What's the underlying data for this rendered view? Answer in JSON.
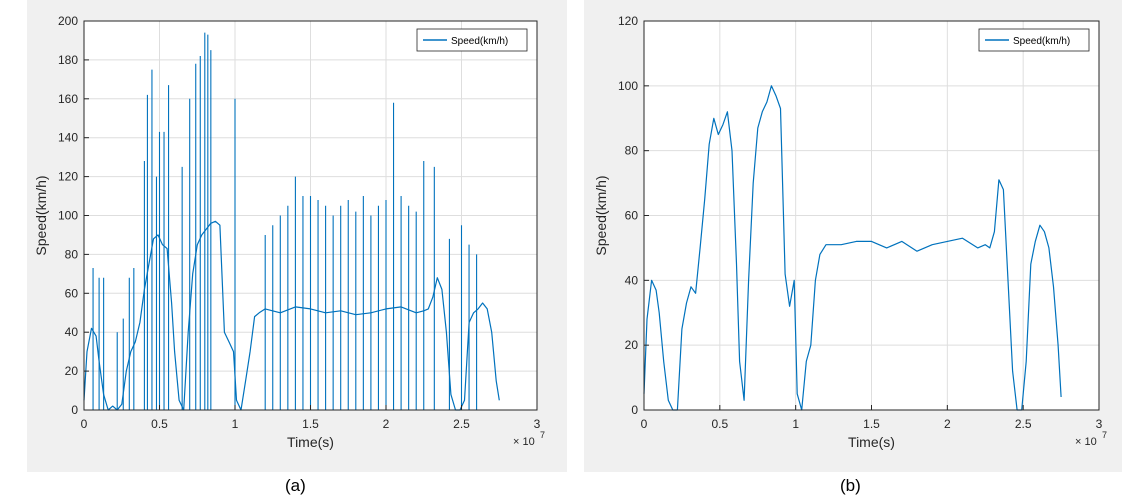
{
  "chart_data": [
    {
      "type": "line",
      "caption": "(a)",
      "xlabel": "Time(s)",
      "ylabel": "Speed(km/h)",
      "x_multiplier": "× 10",
      "x_multiplier_exp": "7",
      "xlim": [
        0,
        3
      ],
      "ylim": [
        0,
        200
      ],
      "xticks": [
        0,
        0.5,
        1,
        1.5,
        2,
        2.5,
        3
      ],
      "xtick_labels": [
        "0",
        "0.5",
        "1",
        "1.5",
        "2",
        "2.5",
        "3"
      ],
      "yticks": [
        0,
        20,
        40,
        60,
        80,
        100,
        120,
        140,
        160,
        180,
        200
      ],
      "grid": true,
      "legend_position": "top-right",
      "color": "#0072bd",
      "series": [
        {
          "name": "Speed(km/h)",
          "x": [
            0,
            0.02,
            0.05,
            0.08,
            0.1,
            0.13,
            0.16,
            0.19,
            0.22,
            0.25,
            0.28,
            0.31,
            0.34,
            0.37,
            0.4,
            0.43,
            0.46,
            0.49,
            0.52,
            0.55,
            0.58,
            0.6,
            0.63,
            0.66,
            0.69,
            0.72,
            0.75,
            0.78,
            0.81,
            0.84,
            0.87,
            0.9,
            0.93,
            0.96,
            0.99,
            1.01,
            1.04,
            1.07,
            1.1,
            1.13,
            1.16,
            1.2,
            1.3,
            1.4,
            1.5,
            1.6,
            1.7,
            1.8,
            1.9,
            2.0,
            2.1,
            2.2,
            2.25,
            2.28,
            2.31,
            2.34,
            2.37,
            2.4,
            2.43,
            2.46,
            2.49,
            2.52,
            2.55,
            2.58,
            2.61,
            2.64,
            2.67,
            2.7,
            2.73,
            2.75
          ],
          "y": [
            5,
            30,
            42,
            38,
            25,
            8,
            0,
            2,
            0,
            3,
            20,
            30,
            35,
            45,
            62,
            75,
            88,
            90,
            85,
            83,
            55,
            30,
            5,
            0,
            40,
            70,
            85,
            90,
            93,
            96,
            97,
            95,
            40,
            35,
            30,
            5,
            0,
            15,
            30,
            48,
            50,
            52,
            50,
            53,
            52,
            50,
            51,
            49,
            50,
            52,
            53,
            50,
            51,
            52,
            58,
            68,
            62,
            40,
            8,
            0,
            0,
            5,
            45,
            50,
            52,
            55,
            52,
            40,
            15,
            5
          ]
        }
      ],
      "spikes": [
        [
          0.06,
          73
        ],
        [
          0.1,
          68
        ],
        [
          0.13,
          68
        ],
        [
          0.22,
          40
        ],
        [
          0.26,
          47
        ],
        [
          0.3,
          68
        ],
        [
          0.33,
          73
        ],
        [
          0.4,
          128
        ],
        [
          0.42,
          162
        ],
        [
          0.45,
          175
        ],
        [
          0.48,
          120
        ],
        [
          0.5,
          143
        ],
        [
          0.53,
          143
        ],
        [
          0.56,
          167
        ],
        [
          0.65,
          125
        ],
        [
          0.7,
          160
        ],
        [
          0.74,
          178
        ],
        [
          0.77,
          182
        ],
        [
          0.8,
          194
        ],
        [
          0.82,
          193
        ],
        [
          0.84,
          185
        ],
        [
          1.0,
          160
        ],
        [
          1.2,
          90
        ],
        [
          1.25,
          95
        ],
        [
          1.3,
          100
        ],
        [
          1.35,
          105
        ],
        [
          1.4,
          120
        ],
        [
          1.45,
          110
        ],
        [
          1.5,
          110
        ],
        [
          1.55,
          108
        ],
        [
          1.6,
          105
        ],
        [
          1.65,
          100
        ],
        [
          1.7,
          105
        ],
        [
          1.75,
          108
        ],
        [
          1.8,
          102
        ],
        [
          1.85,
          110
        ],
        [
          1.9,
          100
        ],
        [
          1.95,
          105
        ],
        [
          2.0,
          108
        ],
        [
          2.05,
          158
        ],
        [
          2.1,
          110
        ],
        [
          2.15,
          105
        ],
        [
          2.2,
          102
        ],
        [
          2.25,
          128
        ],
        [
          2.32,
          125
        ],
        [
          2.42,
          88
        ],
        [
          2.5,
          95
        ],
        [
          2.55,
          85
        ],
        [
          2.6,
          80
        ]
      ]
    },
    {
      "type": "line",
      "caption": "(b)",
      "xlabel": "Time(s)",
      "ylabel": "Speed(km/h)",
      "x_multiplier": "× 10",
      "x_multiplier_exp": "7",
      "xlim": [
        0,
        3
      ],
      "ylim": [
        0,
        120
      ],
      "xticks": [
        0,
        0.5,
        1,
        1.5,
        2,
        2.5,
        3
      ],
      "xtick_labels": [
        "0",
        "0.5",
        "1",
        "1.5",
        "2",
        "2.5",
        "3"
      ],
      "yticks": [
        0,
        20,
        40,
        60,
        80,
        100,
        120
      ],
      "grid": true,
      "legend_position": "top-right",
      "color": "#0072bd",
      "series": [
        {
          "name": "Speed(km/h)",
          "x": [
            0,
            0.02,
            0.05,
            0.08,
            0.1,
            0.13,
            0.16,
            0.19,
            0.22,
            0.25,
            0.28,
            0.31,
            0.34,
            0.37,
            0.4,
            0.43,
            0.46,
            0.49,
            0.52,
            0.55,
            0.58,
            0.61,
            0.63,
            0.66,
            0.69,
            0.72,
            0.75,
            0.78,
            0.81,
            0.84,
            0.87,
            0.9,
            0.93,
            0.96,
            0.99,
            1.01,
            1.04,
            1.07,
            1.1,
            1.13,
            1.16,
            1.2,
            1.3,
            1.4,
            1.5,
            1.6,
            1.7,
            1.8,
            1.9,
            2.0,
            2.1,
            2.2,
            2.25,
            2.28,
            2.31,
            2.34,
            2.37,
            2.4,
            2.43,
            2.46,
            2.49,
            2.52,
            2.55,
            2.58,
            2.61,
            2.64,
            2.67,
            2.7,
            2.73,
            2.75
          ],
          "y": [
            5,
            28,
            40,
            37,
            30,
            15,
            3,
            0,
            0,
            25,
            33,
            38,
            36,
            50,
            65,
            82,
            90,
            85,
            88,
            92,
            80,
            45,
            15,
            3,
            40,
            70,
            87,
            92,
            95,
            100,
            97,
            93,
            42,
            32,
            40,
            5,
            0,
            15,
            20,
            40,
            48,
            51,
            51,
            52,
            52,
            50,
            52,
            49,
            51,
            52,
            53,
            50,
            51,
            50,
            55,
            71,
            68,
            40,
            12,
            0,
            0,
            15,
            45,
            52,
            57,
            55,
            50,
            38,
            20,
            4
          ]
        }
      ]
    }
  ]
}
